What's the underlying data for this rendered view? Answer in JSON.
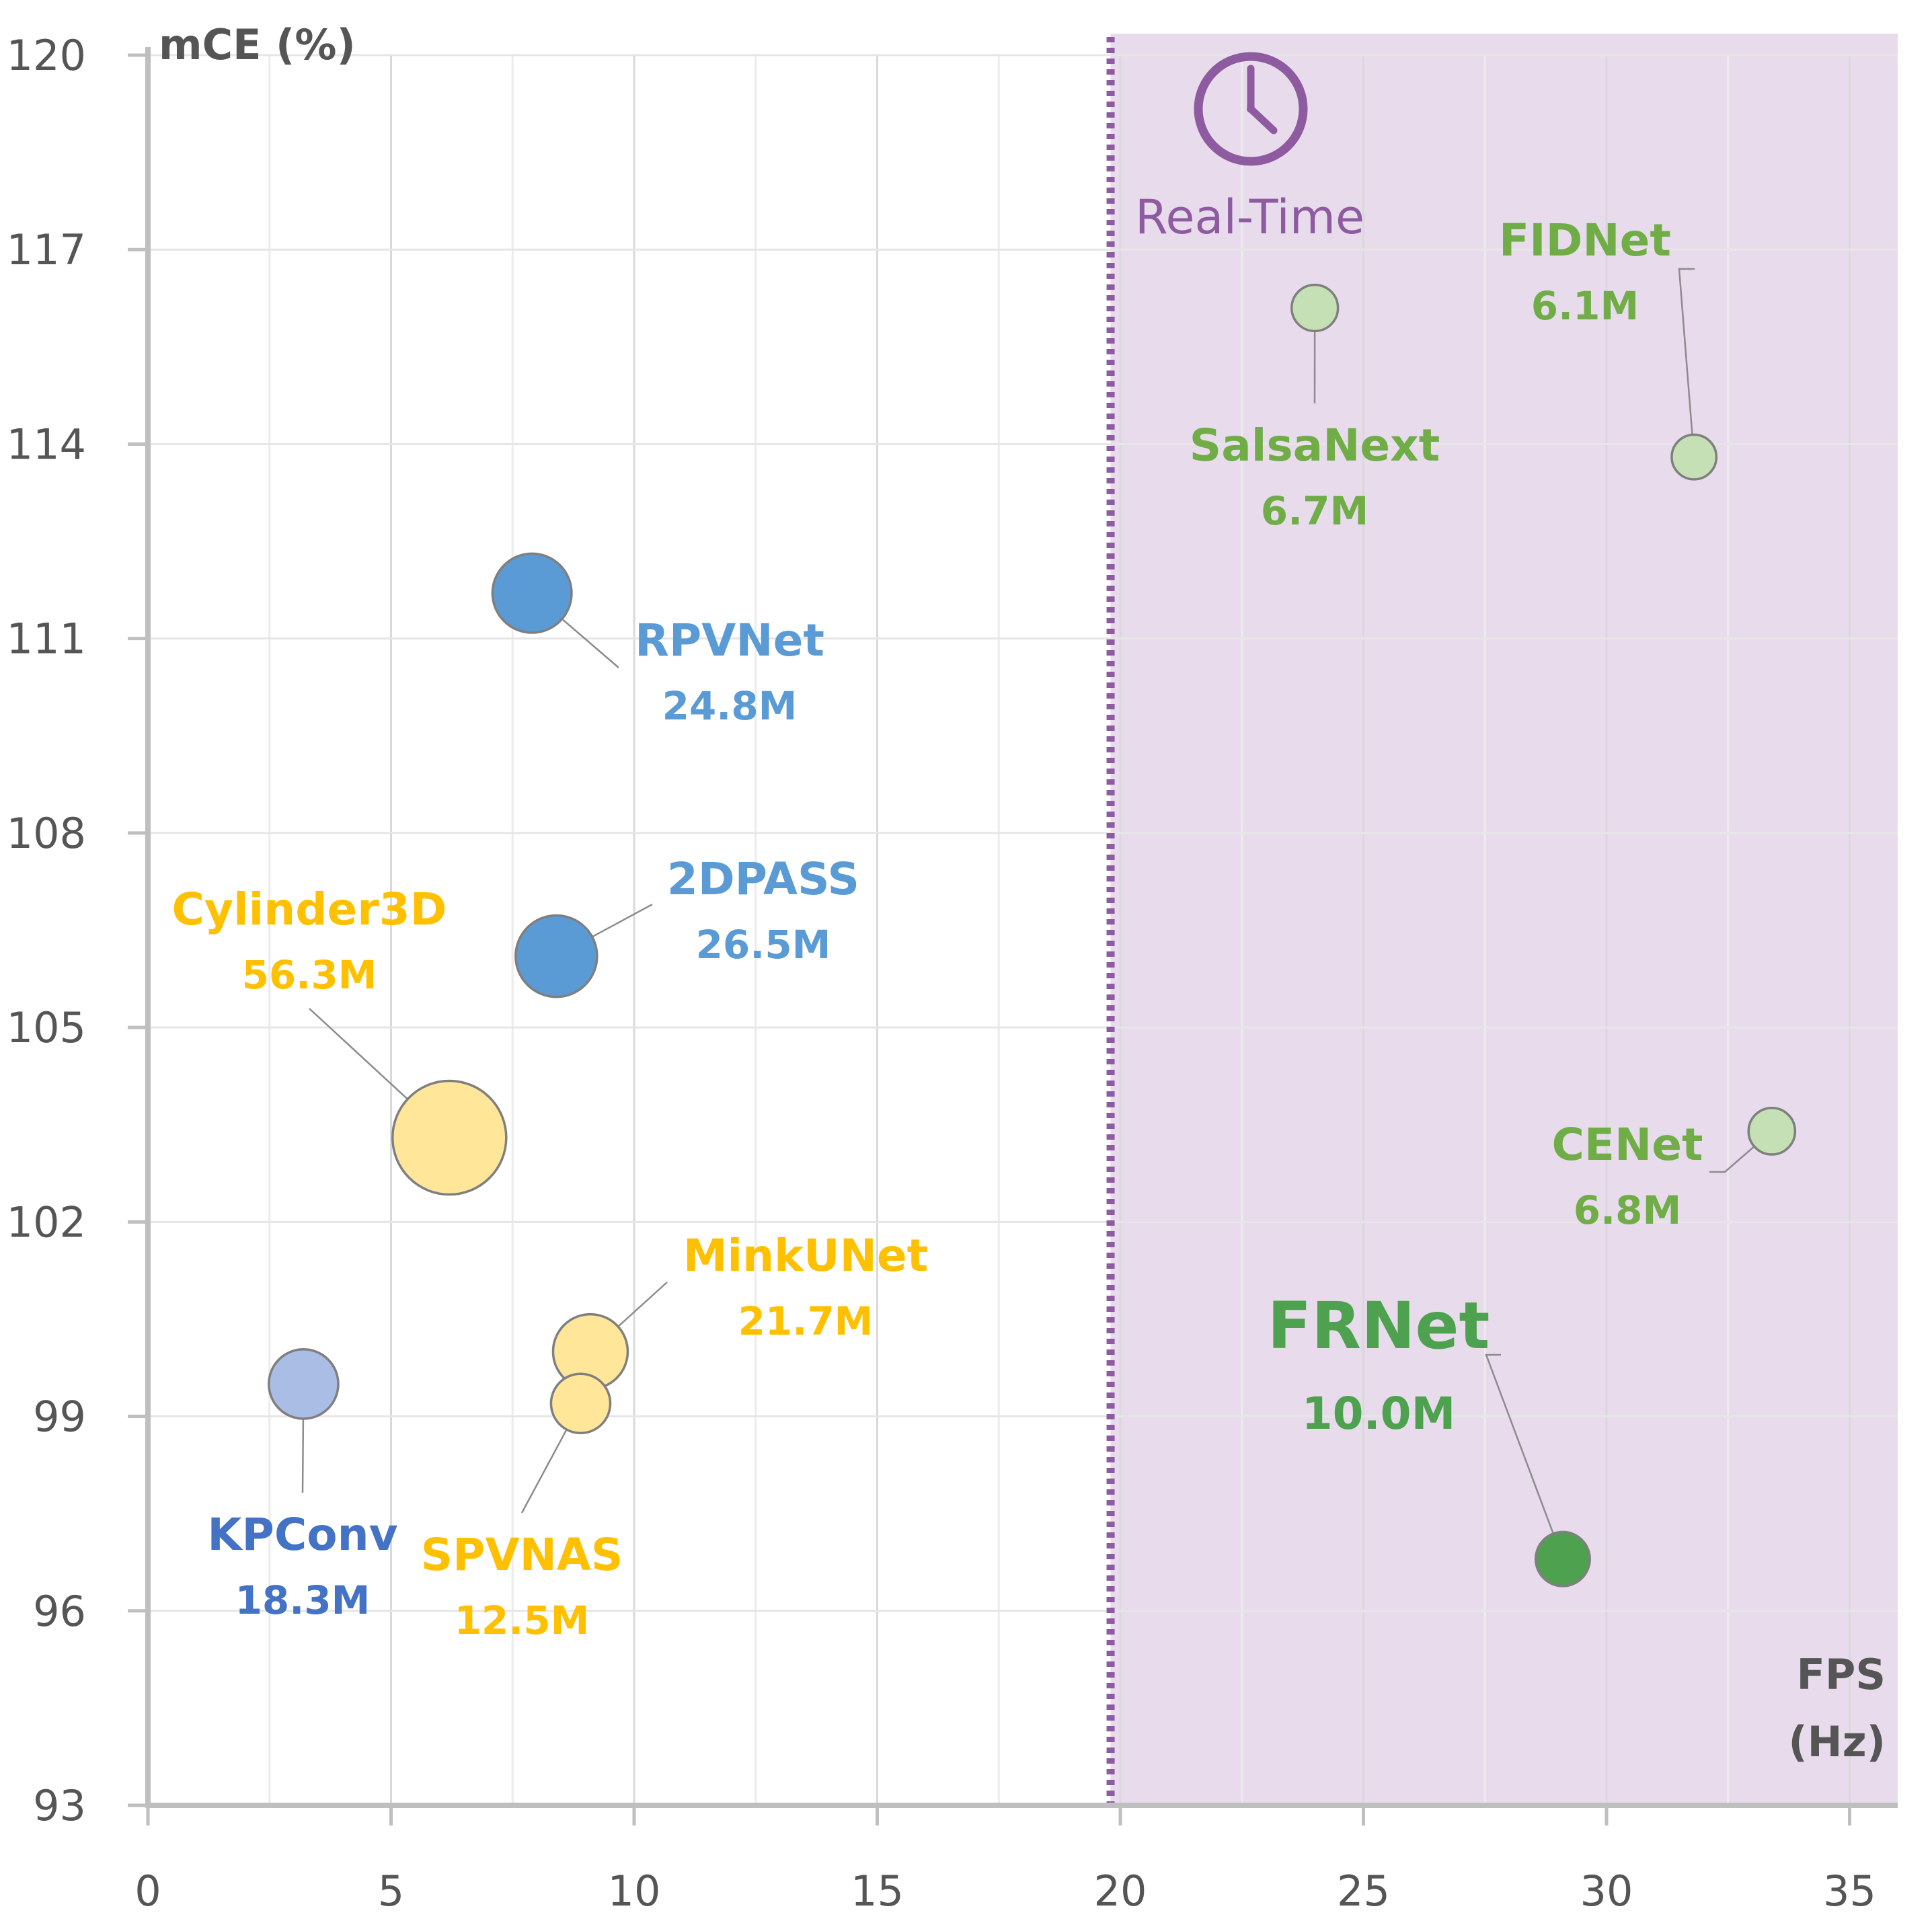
{
  "chart_data": {
    "type": "scatter",
    "title": "",
    "xlabel": "FPS",
    "xlabel_unit": "(Hz)",
    "ylabel": "mCE (%)",
    "xlim": [
      0,
      36
    ],
    "ylim": [
      93,
      120
    ],
    "x_ticks": [
      "0",
      "5",
      "10",
      "15",
      "20",
      "25",
      "30",
      "35"
    ],
    "y_ticks": [
      "93",
      "96",
      "99",
      "102",
      "105",
      "108",
      "111",
      "114",
      "117",
      "120"
    ],
    "grid": true,
    "region": {
      "label": "Real-Time",
      "x_from": 19.8,
      "color": "#e8dcec",
      "line_color": "#8e5aa0"
    },
    "points": [
      {
        "name": "KPConv",
        "size_label": "18.3M",
        "params_m": 18.3,
        "x": 3.2,
        "y": 99.5,
        "color": "#aabde4",
        "label_color": "#4472c4"
      },
      {
        "name": "RPVNet",
        "size_label": "24.8M",
        "params_m": 24.8,
        "x": 7.9,
        "y": 111.7,
        "color": "#5b9bd5",
        "label_color": "#5b9bd5"
      },
      {
        "name": "2DPASS",
        "size_label": "26.5M",
        "params_m": 26.5,
        "x": 8.4,
        "y": 106.1,
        "color": "#5b9bd5",
        "label_color": "#5b9bd5"
      },
      {
        "name": "Cylinder3D",
        "size_label": "56.3M",
        "params_m": 56.3,
        "x": 6.2,
        "y": 103.3,
        "color": "#ffe699",
        "label_color": "#ffc000"
      },
      {
        "name": "MinkUNet",
        "size_label": "21.7M",
        "params_m": 21.7,
        "x": 9.1,
        "y": 100.0,
        "color": "#ffe699",
        "label_color": "#ffc000"
      },
      {
        "name": "SPVNAS",
        "size_label": "12.5M",
        "params_m": 12.5,
        "x": 8.9,
        "y": 99.2,
        "color": "#ffe699",
        "label_color": "#ffc000"
      },
      {
        "name": "SalsaNext",
        "size_label": "6.7M",
        "params_m": 6.7,
        "x": 24.0,
        "y": 116.1,
        "color": "#c5e0b4",
        "label_color": "#70ad47"
      },
      {
        "name": "FIDNet",
        "size_label": "6.1M",
        "params_m": 6.1,
        "x": 31.8,
        "y": 113.8,
        "color": "#c5e0b4",
        "label_color": "#70ad47"
      },
      {
        "name": "CENet",
        "size_label": "6.8M",
        "params_m": 6.8,
        "x": 33.4,
        "y": 103.4,
        "color": "#c5e0b4",
        "label_color": "#70ad47"
      },
      {
        "name": "FRNet",
        "size_label": "10.0M",
        "params_m": 10.0,
        "x": 29.1,
        "y": 96.8,
        "color": "#4ea24f",
        "label_color": "#4ea24f"
      }
    ]
  }
}
